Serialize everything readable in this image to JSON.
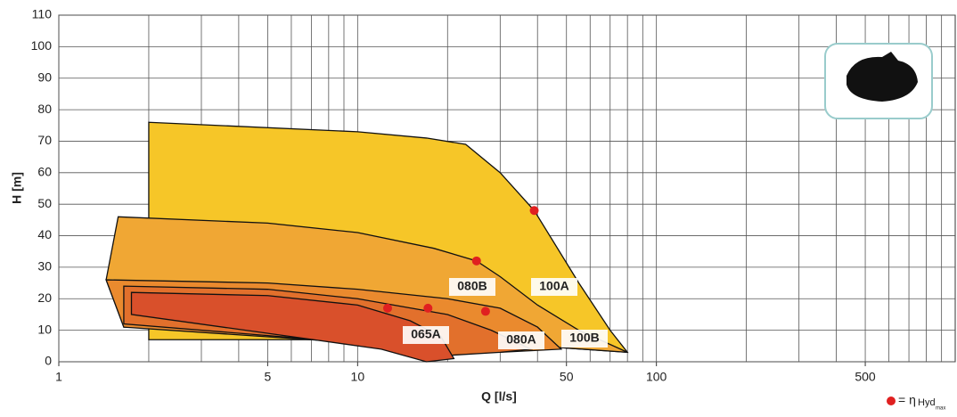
{
  "chart_data": {
    "type": "area-map",
    "x_label": "Q [l/s]",
    "y_label": "H [m]",
    "xlim": [
      1,
      1000
    ],
    "ylim": [
      0,
      110
    ],
    "log_x": true,
    "grid": true,
    "xticks": [
      1,
      5,
      10,
      50,
      100,
      500
    ],
    "minor_xticks": [
      2,
      3,
      4,
      6,
      7,
      8,
      9,
      20,
      30,
      40,
      60,
      70,
      80,
      90,
      200,
      300,
      400,
      600,
      700,
      800,
      900
    ],
    "yticks": [
      0,
      10,
      20,
      30,
      40,
      50,
      60,
      70,
      80,
      90,
      100,
      110
    ],
    "regions": [
      {
        "name": "100A",
        "color": "#f6c628",
        "points": [
          [
            2,
            76
          ],
          [
            10,
            73
          ],
          [
            17,
            71
          ],
          [
            23,
            69
          ],
          [
            30,
            60
          ],
          [
            39,
            48
          ],
          [
            55,
            25
          ],
          [
            70,
            10
          ],
          [
            80,
            3
          ],
          [
            40,
            5
          ],
          [
            20,
            6
          ],
          [
            10,
            7
          ],
          [
            2,
            7
          ]
        ]
      },
      {
        "name": "100B",
        "color": "#f0a734",
        "points": [
          [
            1.58,
            46
          ],
          [
            5,
            44
          ],
          [
            10,
            41
          ],
          [
            18,
            36
          ],
          [
            25,
            32
          ],
          [
            30,
            27
          ],
          [
            40,
            18
          ],
          [
            55,
            10
          ],
          [
            80,
            3
          ],
          [
            40,
            5
          ],
          [
            15,
            8
          ],
          [
            5,
            10
          ],
          [
            1.65,
            11
          ],
          [
            1.44,
            26
          ]
        ]
      },
      {
        "name": "080B",
        "color": "#ea8a2e",
        "points": [
          [
            1.44,
            26
          ],
          [
            5,
            25
          ],
          [
            10,
            23
          ],
          [
            20,
            20
          ],
          [
            30,
            17
          ],
          [
            40,
            11
          ],
          [
            48,
            4
          ],
          [
            30,
            3
          ],
          [
            20,
            4
          ],
          [
            10,
            6
          ],
          [
            1.65,
            11
          ]
        ]
      },
      {
        "name": "080A",
        "color": "#e2702c",
        "points": [
          [
            1.65,
            24
          ],
          [
            5,
            23
          ],
          [
            10,
            20
          ],
          [
            20,
            15
          ],
          [
            28,
            10
          ],
          [
            38,
            4
          ],
          [
            30,
            3
          ],
          [
            20,
            2
          ],
          [
            10,
            6
          ],
          [
            1.65,
            12
          ]
        ]
      },
      {
        "name": "065A",
        "color": "#d9502b",
        "points": [
          [
            1.75,
            22
          ],
          [
            5,
            21
          ],
          [
            10,
            18
          ],
          [
            15,
            13
          ],
          [
            19,
            8
          ],
          [
            21,
            1
          ],
          [
            17,
            0
          ],
          [
            12,
            4
          ],
          [
            6,
            8
          ],
          [
            1.75,
            15
          ]
        ]
      }
    ],
    "efficiency_points": {
      "color": "#e02020",
      "x": [
        39,
        25,
        26.8,
        17.2,
        12.6
      ],
      "y": [
        48,
        32,
        16,
        17,
        17
      ]
    },
    "legend": {
      "symbol": "= η",
      "text": "Hyd",
      "sub": "max"
    }
  }
}
